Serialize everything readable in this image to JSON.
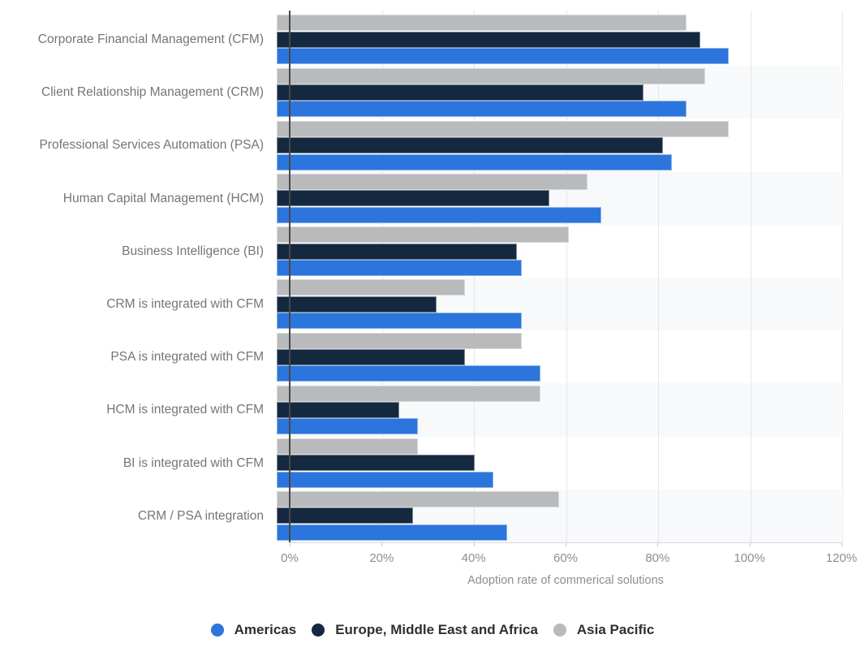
{
  "chart_data": {
    "type": "bar",
    "orientation": "horizontal",
    "title": "",
    "xlabel": "Adoption rate of commerical solutions",
    "ylabel": "",
    "xlim": [
      0,
      120
    ],
    "x_ticks": [
      "0%",
      "20%",
      "40%",
      "60%",
      "80%",
      "100%",
      "120%"
    ],
    "grid": "vertical-dotted",
    "legend_position": "bottom",
    "row_band_alternate": true,
    "bar_order_top_to_bottom": [
      "Asia Pacific",
      "Europe, Middle East and Africa",
      "Americas"
    ],
    "categories": [
      "Corporate Financial Management (CFM)",
      "Client Relationship Management (CRM)",
      "Professional Services Automation (PSA)",
      "Human Capital Management (HCM)",
      "Business Intelligence (BI)",
      "CRM is integrated with CFM",
      "PSA is integrated with CFM",
      "HCM is integrated with CFM",
      "BI is integrated with CFM",
      "CRM / PSA integration"
    ],
    "series": [
      {
        "name": "Americas",
        "color": "#2b75dc",
        "values": [
          96,
          87,
          84,
          69,
          52,
          52,
          56,
          30,
          46,
          49
        ]
      },
      {
        "name": "Europe, Middle East and Africa",
        "color": "#142940",
        "values": [
          90,
          78,
          82,
          58,
          51,
          34,
          40,
          26,
          42,
          29
        ]
      },
      {
        "name": "Asia Pacific",
        "color": "#b9babc",
        "values": [
          87,
          91,
          96,
          66,
          62,
          40,
          52,
          56,
          30,
          60
        ]
      }
    ],
    "units": "%"
  }
}
